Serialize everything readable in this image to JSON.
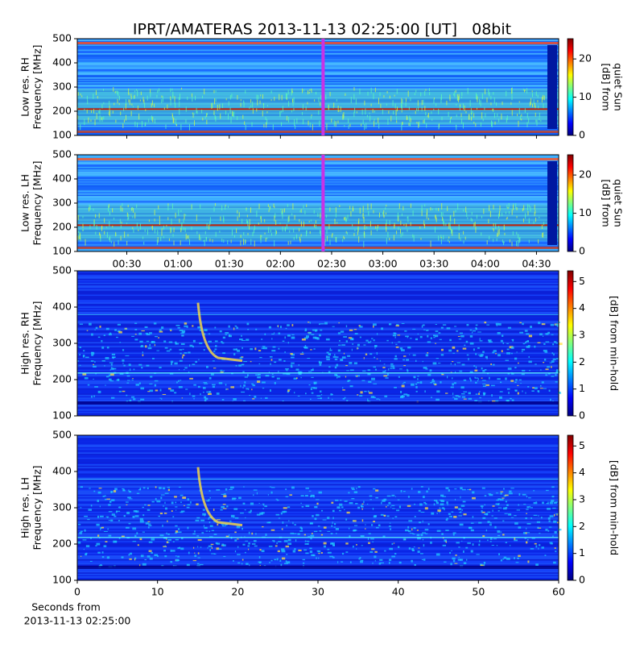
{
  "chart_data": [
    {
      "type": "spectrogram",
      "title": "IPRT/AMATERAS 2013-11-13 02:25:00 [UT]   08bit",
      "ylabel": [
        "Low res. RH",
        "Frequency [MHz]"
      ],
      "ylim": [
        100,
        500
      ],
      "yticks": [
        100,
        200,
        300,
        400,
        500
      ],
      "marker": 145,
      "marker_color": "#c832e6",
      "colorbar": {
        "label": [
          "[dB] from",
          "quiet Sun"
        ],
        "lim": [
          0,
          25.3
        ],
        "ticks": [
          0,
          10,
          20
        ]
      }
    },
    {
      "type": "spectrogram",
      "ylabel": [
        "Low res. LH",
        "Frequency [MHz]"
      ],
      "ylim": [
        100,
        500
      ],
      "yticks": [
        100,
        200,
        300,
        400,
        500
      ],
      "xlim": [
        1,
        283
      ],
      "xticks": [
        {
          "value": 30,
          "label": "00:30"
        },
        {
          "value": 60,
          "label": "01:00"
        },
        {
          "value": 90,
          "label": "01:30"
        },
        {
          "value": 120,
          "label": "02:00"
        },
        {
          "value": 150,
          "label": "02:30"
        },
        {
          "value": 180,
          "label": "03:00"
        },
        {
          "value": 210,
          "label": "03:30"
        },
        {
          "value": 240,
          "label": "04:00"
        },
        {
          "value": 270,
          "label": "04:30"
        }
      ],
      "marker": 145,
      "marker_color": "#c832e6",
      "colorbar": {
        "label": [
          "[dB] from",
          "quiet Sun"
        ],
        "lim": [
          0,
          25.3
        ],
        "ticks": [
          0,
          10,
          20
        ]
      }
    },
    {
      "type": "spectrogram",
      "ylabel": [
        "High res. RH",
        "Frequency [MHz]"
      ],
      "ylim": [
        100,
        500
      ],
      "yticks": [
        100,
        200,
        300,
        400,
        500
      ],
      "colorbar": {
        "label": [
          "[dB] from min-hold"
        ],
        "lim": [
          0,
          5.4
        ],
        "ticks": [
          0,
          1,
          2,
          3,
          4,
          5
        ]
      }
    },
    {
      "type": "spectrogram",
      "ylabel": [
        "High res. LH",
        "Frequency [MHz]"
      ],
      "ylim": [
        100,
        500
      ],
      "yticks": [
        100,
        200,
        300,
        400,
        500
      ],
      "xlim": [
        0,
        60
      ],
      "xticks": [
        0,
        10,
        20,
        30,
        40,
        50,
        60
      ],
      "xlabel": [
        "Seconds from",
        "2013-11-13 02:25:00"
      ],
      "colorbar": {
        "label": [
          "[dB] from min-hold"
        ],
        "lim": [
          0,
          5.4
        ],
        "ticks": [
          0,
          1,
          2,
          3,
          4,
          5
        ]
      }
    }
  ]
}
